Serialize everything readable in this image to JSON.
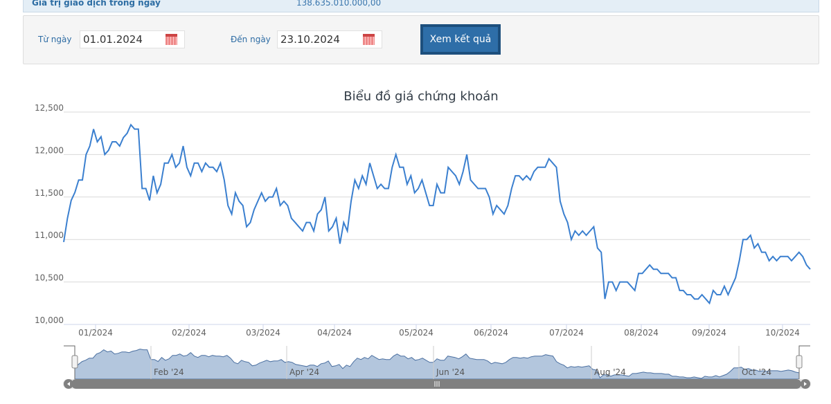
{
  "info": {
    "label": "Giá trị giao dịch trong ngày",
    "value": "138.635.010.000,00"
  },
  "filter": {
    "from_label": "Từ ngày",
    "from_value": "01.01.2024",
    "to_label": "Đến ngày",
    "to_value": "23.10.2024",
    "submit": "Xem kết quả",
    "calendar_icon": "calendar-icon"
  },
  "chart_data": {
    "type": "line",
    "title": "Biểu đồ giá chứng khoán",
    "color": "#3a7fcf",
    "x_range": [
      "2024-01-02",
      "2024-10-23"
    ],
    "ylim": [
      10000,
      12500
    ],
    "grid": true,
    "y_ticks": [
      "10,000",
      "10,500",
      "11,000",
      "11,500",
      "12,000",
      "12,500"
    ],
    "x_ticks": [
      "01/2024",
      "02/2024",
      "03/2024",
      "04/2024",
      "05/2024",
      "06/2024",
      "07/2024",
      "08/2024",
      "09/2024",
      "10/2024"
    ],
    "navigator_ticks": [
      "Feb '24",
      "Apr '24",
      "Jun '24",
      "Aug '24",
      "Oct '24"
    ],
    "values": [
      10970,
      11250,
      11460,
      11555,
      11700,
      11700,
      12000,
      12100,
      12300,
      12150,
      12210,
      12000,
      12050,
      12150,
      12150,
      12100,
      12200,
      12250,
      12350,
      12300,
      12300,
      11600,
      11600,
      11460,
      11750,
      11550,
      11650,
      11900,
      11900,
      12000,
      11850,
      11900,
      12100,
      11850,
      11750,
      11900,
      11900,
      11800,
      11900,
      11850,
      11850,
      11800,
      11900,
      11700,
      11400,
      11300,
      11550,
      11450,
      11400,
      11150,
      11200,
      11350,
      11450,
      11550,
      11450,
      11500,
      11500,
      11600,
      11400,
      11450,
      11400,
      11250,
      11200,
      11150,
      11100,
      11200,
      11200,
      11100,
      11300,
      11350,
      11500,
      11100,
      11150,
      11250,
      10950,
      11200,
      11100,
      11450,
      11700,
      11600,
      11750,
      11650,
      11900,
      11750,
      11600,
      11650,
      11600,
      11600,
      11850,
      12000,
      11850,
      11850,
      11650,
      11750,
      11550,
      11600,
      11700,
      11550,
      11400,
      11400,
      11650,
      11550,
      11550,
      11850,
      11800,
      11750,
      11650,
      11800,
      12000,
      11700,
      11650,
      11600,
      11600,
      11600,
      11500,
      11300,
      11400,
      11350,
      11300,
      11400,
      11600,
      11750,
      11750,
      11700,
      11750,
      11700,
      11800,
      11850,
      11850,
      11850,
      11950,
      11900,
      11850,
      11450,
      11300,
      11200,
      11000,
      11100,
      11050,
      11100,
      11050,
      11100,
      11150,
      10900,
      10850,
      10300,
      10500,
      10500,
      10400,
      10500,
      10500,
      10500,
      10450,
      10400,
      10600,
      10600,
      10650,
      10700,
      10650,
      10650,
      10600,
      10600,
      10600,
      10550,
      10550,
      10400,
      10400,
      10350,
      10350,
      10300,
      10300,
      10350,
      10300,
      10250,
      10400,
      10350,
      10350,
      10450,
      10350,
      10450,
      10550,
      10750,
      11000,
      11000,
      11050,
      10900,
      10950,
      10850,
      10850,
      10750,
      10800,
      10750,
      10800,
      10800,
      10800,
      10750,
      10800,
      10850,
      10800,
      10700,
      10650
    ]
  }
}
